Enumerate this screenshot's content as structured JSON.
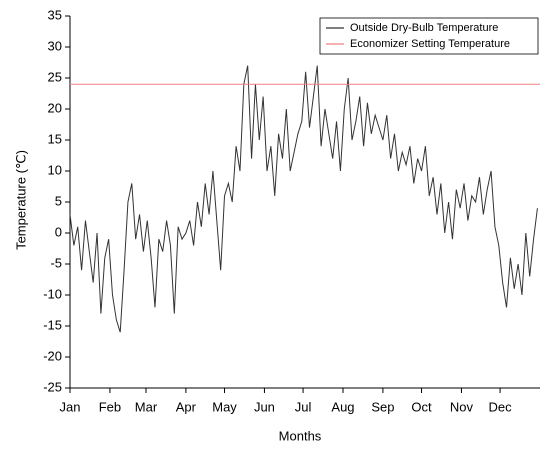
{
  "chart_data": {
    "type": "line",
    "x_label": "Months",
    "y_label": "Temperature (℃)",
    "xlim": [
      0,
      365
    ],
    "xticks": [
      {
        "value": 0,
        "label": "Jan"
      },
      {
        "value": 31,
        "label": "Feb"
      },
      {
        "value": 59,
        "label": "Mar"
      },
      {
        "value": 90,
        "label": "Apr"
      },
      {
        "value": 120,
        "label": "May"
      },
      {
        "value": 151,
        "label": "Jun"
      },
      {
        "value": 181,
        "label": "Jul"
      },
      {
        "value": 212,
        "label": "Aug"
      },
      {
        "value": 243,
        "label": "Sep"
      },
      {
        "value": 273,
        "label": "Oct"
      },
      {
        "value": 304,
        "label": "Nov"
      },
      {
        "value": 334,
        "label": "Dec"
      }
    ],
    "ylim": [
      -25,
      35
    ],
    "yticks": [
      -25,
      -20,
      -15,
      -10,
      -5,
      0,
      5,
      10,
      15,
      20,
      25,
      30,
      35
    ],
    "legend": "upper right",
    "series": [
      {
        "name": "Outside Dry-Bulb Temperature",
        "color": "#333333",
        "x": [
          0,
          3,
          6,
          9,
          12,
          15,
          18,
          21,
          24,
          27,
          30,
          33,
          36,
          39,
          42,
          45,
          48,
          51,
          54,
          57,
          60,
          63,
          66,
          69,
          72,
          75,
          78,
          81,
          84,
          87,
          90,
          93,
          96,
          99,
          102,
          105,
          108,
          111,
          114,
          117,
          120,
          123,
          126,
          129,
          132,
          135,
          138,
          141,
          144,
          147,
          150,
          153,
          156,
          159,
          162,
          165,
          168,
          171,
          174,
          177,
          180,
          183,
          186,
          189,
          192,
          195,
          198,
          201,
          204,
          207,
          210,
          213,
          216,
          219,
          222,
          225,
          228,
          231,
          234,
          237,
          240,
          243,
          246,
          249,
          252,
          255,
          258,
          261,
          264,
          267,
          270,
          273,
          276,
          279,
          282,
          285,
          288,
          291,
          294,
          297,
          300,
          303,
          306,
          309,
          312,
          315,
          318,
          321,
          324,
          327,
          330,
          333,
          336,
          339,
          342,
          345,
          348,
          351,
          354,
          357,
          360,
          363
        ],
        "values": [
          3,
          -2,
          1,
          -6,
          2,
          -3,
          -8,
          0,
          -13,
          -4,
          -1,
          -10,
          -14,
          -16,
          -6,
          5,
          8,
          -1,
          3,
          -3,
          2,
          -4,
          -12,
          -1,
          -3,
          2,
          -2,
          -13,
          1,
          -1,
          0,
          2,
          -2,
          5,
          1,
          8,
          3,
          10,
          2,
          -6,
          6,
          8,
          5,
          14,
          10,
          24,
          27,
          12,
          24,
          15,
          22,
          10,
          14,
          6,
          16,
          12,
          20,
          10,
          13,
          16,
          18,
          26,
          17,
          22,
          27,
          14,
          20,
          16,
          12,
          18,
          10,
          20,
          25,
          15,
          18,
          22,
          14,
          21,
          16,
          19,
          17,
          15,
          19,
          12,
          16,
          10,
          13,
          11,
          14,
          8,
          12,
          10,
          14,
          6,
          9,
          3,
          8,
          0,
          5,
          -1,
          7,
          4,
          8,
          2,
          6,
          5,
          9,
          3,
          7,
          10,
          1,
          -2,
          -8,
          -12,
          -4,
          -9,
          -5,
          -10,
          0,
          -7,
          -1,
          4
        ]
      },
      {
        "name": "Economizer Setting Temperature",
        "color": "#f08080",
        "x": [
          0,
          365
        ],
        "values": [
          24,
          24
        ]
      }
    ]
  }
}
